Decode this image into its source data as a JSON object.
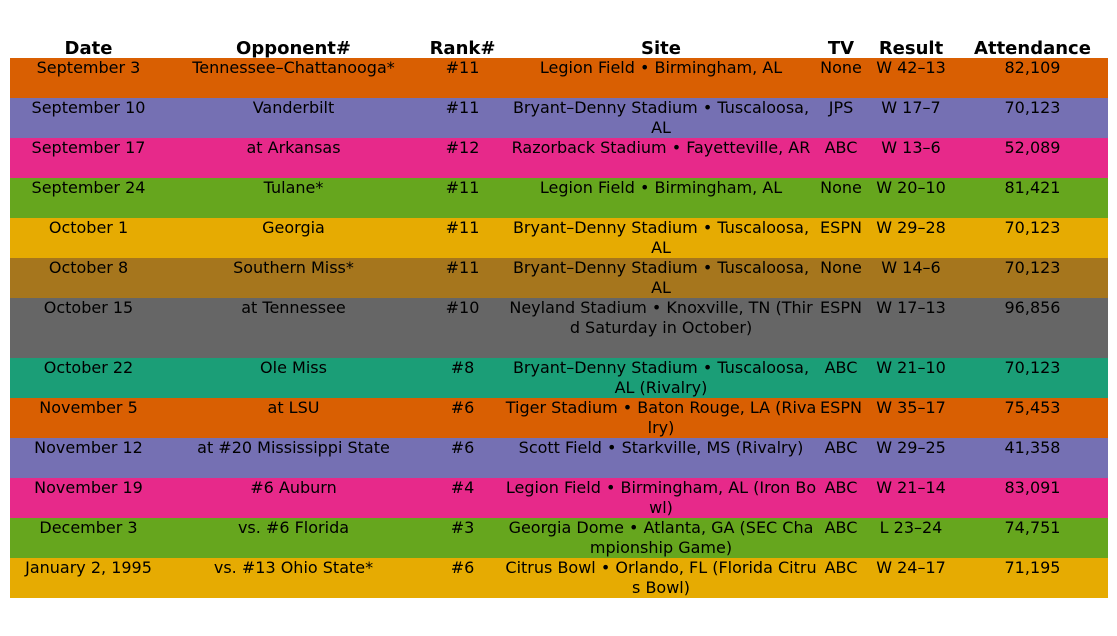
{
  "chart_data": {
    "type": "table",
    "columns": [
      "Date",
      "Opponent#",
      "Rank#",
      "Site",
      "TV",
      "Result",
      "Attendance"
    ],
    "rows": [
      {
        "date": "September 3",
        "opponent": "Tennessee–Chattanooga*",
        "rank": "#11",
        "site": "Legion Field • Birmingham, AL",
        "tv": "None",
        "result": "W 42–13",
        "attendance": "82,109",
        "color": "#d95f02"
      },
      {
        "date": "September 10",
        "opponent": "Vanderbilt",
        "rank": "#11",
        "site": "Bryant–Denny Stadium • Tuscaloosa, AL",
        "tv": "JPS",
        "result": "W 17–7",
        "attendance": "70,123",
        "color": "#7570b3"
      },
      {
        "date": "September 17",
        "opponent": "at Arkansas",
        "rank": "#12",
        "site": "Razorback Stadium • Fayetteville, AR",
        "tv": "ABC",
        "result": "W 13–6",
        "attendance": "52,089",
        "color": "#e7298a"
      },
      {
        "date": "September 24",
        "opponent": "Tulane*",
        "rank": "#11",
        "site": "Legion Field • Birmingham, AL",
        "tv": "None",
        "result": "W 20–10",
        "attendance": "81,421",
        "color": "#66a61e"
      },
      {
        "date": "October 1",
        "opponent": "Georgia",
        "rank": "#11",
        "site": "Bryant–Denny Stadium • Tuscaloosa, AL",
        "tv": "ESPN",
        "result": "W 29–28",
        "attendance": "70,123",
        "color": "#e6ab02"
      },
      {
        "date": "October 8",
        "opponent": "Southern Miss*",
        "rank": "#11",
        "site": "Bryant–Denny Stadium • Tuscaloosa, AL",
        "tv": "None",
        "result": "W 14–6",
        "attendance": "70,123",
        "color": "#a6761d"
      },
      {
        "date": "October 15",
        "opponent": "at Tennessee",
        "rank": "#10",
        "site": "Neyland Stadium • Knoxville, TN (Third Saturday in October)",
        "tv": "ESPN",
        "result": "W 17–13",
        "attendance": "96,856",
        "color": "#666666"
      },
      {
        "date": "October 22",
        "opponent": "Ole Miss",
        "rank": "#8",
        "site": "Bryant–Denny Stadium • Tuscaloosa, AL (Rivalry)",
        "tv": "ABC",
        "result": "W 21–10",
        "attendance": "70,123",
        "color": "#1b9e77"
      },
      {
        "date": "November 5",
        "opponent": "at LSU",
        "rank": "#6",
        "site": "Tiger Stadium • Baton Rouge, LA (Rivalry)",
        "tv": "ESPN",
        "result": "W 35–17",
        "attendance": "75,453",
        "color": "#d95f02"
      },
      {
        "date": "November 12",
        "opponent": "at #20 Mississippi State",
        "rank": "#6",
        "site": "Scott Field • Starkville, MS (Rivalry)",
        "tv": "ABC",
        "result": "W 29–25",
        "attendance": "41,358",
        "color": "#7570b3"
      },
      {
        "date": "November 19",
        "opponent": "#6 Auburn",
        "rank": "#4",
        "site": "Legion Field • Birmingham, AL (Iron Bowl)",
        "tv": "ABC",
        "result": "W 21–14",
        "attendance": "83,091",
        "color": "#e7298a"
      },
      {
        "date": "December 3",
        "opponent": "vs. #6 Florida",
        "rank": "#3",
        "site": "Georgia Dome • Atlanta, GA (SEC Championship Game)",
        "tv": "ABC",
        "result": "L 23–24",
        "attendance": "74,751",
        "color": "#66a61e"
      },
      {
        "date": "January 2, 1995",
        "opponent": "vs. #13 Ohio State*",
        "rank": "#6",
        "site": "Citrus Bowl • Orlando, FL (Florida Citrus Bowl)",
        "tv": "ABC",
        "result": "W 24–17",
        "attendance": "71,195",
        "color": "#e6ab02"
      }
    ]
  }
}
